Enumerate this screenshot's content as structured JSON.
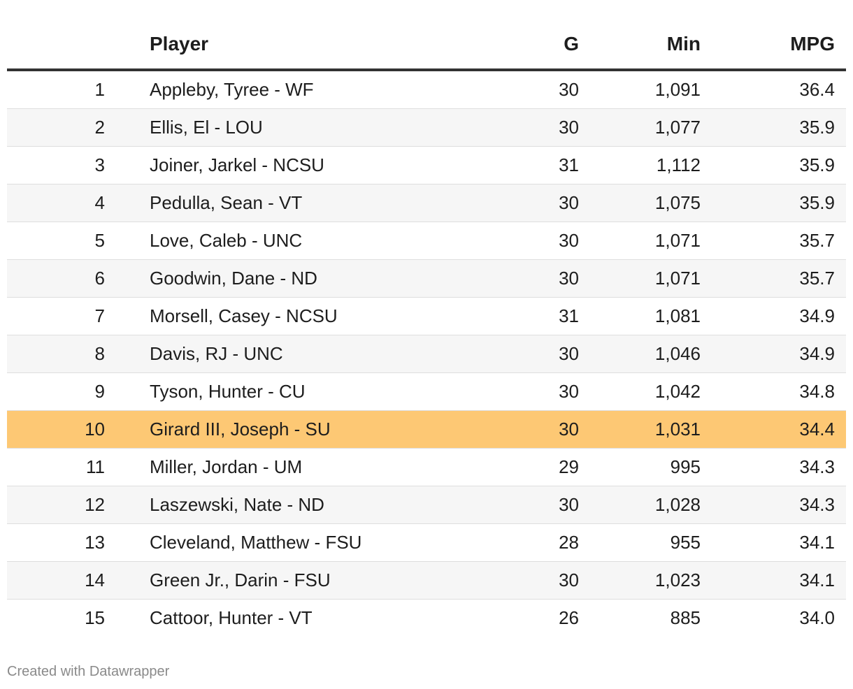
{
  "chart_data": {
    "type": "table",
    "columns": [
      "",
      "Player",
      "G",
      "Min",
      "MPG"
    ],
    "rows": [
      {
        "rank": "1",
        "player": "Appleby, Tyree - WF",
        "g": "30",
        "min": "1,091",
        "mpg": "36.4"
      },
      {
        "rank": "2",
        "player": "Ellis, El - LOU",
        "g": "30",
        "min": "1,077",
        "mpg": "35.9"
      },
      {
        "rank": "3",
        "player": "Joiner, Jarkel - NCSU",
        "g": "31",
        "min": "1,112",
        "mpg": "35.9"
      },
      {
        "rank": "4",
        "player": "Pedulla, Sean - VT",
        "g": "30",
        "min": "1,075",
        "mpg": "35.9"
      },
      {
        "rank": "5",
        "player": "Love, Caleb - UNC",
        "g": "30",
        "min": "1,071",
        "mpg": "35.7"
      },
      {
        "rank": "6",
        "player": "Goodwin, Dane - ND",
        "g": "30",
        "min": "1,071",
        "mpg": "35.7"
      },
      {
        "rank": "7",
        "player": "Morsell, Casey - NCSU",
        "g": "31",
        "min": "1,081",
        "mpg": "34.9"
      },
      {
        "rank": "8",
        "player": "Davis, RJ - UNC",
        "g": "30",
        "min": "1,046",
        "mpg": "34.9"
      },
      {
        "rank": "9",
        "player": "Tyson, Hunter - CU",
        "g": "30",
        "min": "1,042",
        "mpg": "34.8"
      },
      {
        "rank": "10",
        "player": "Girard III, Joseph - SU",
        "g": "30",
        "min": "1,031",
        "mpg": "34.4",
        "highlight": true
      },
      {
        "rank": "11",
        "player": "Miller, Jordan - UM",
        "g": "29",
        "min": "995",
        "mpg": "34.3"
      },
      {
        "rank": "12",
        "player": "Laszewski, Nate - ND",
        "g": "30",
        "min": "1,028",
        "mpg": "34.3"
      },
      {
        "rank": "13",
        "player": "Cleveland, Matthew - FSU",
        "g": "28",
        "min": "955",
        "mpg": "34.1"
      },
      {
        "rank": "14",
        "player": "Green Jr., Darin - FSU",
        "g": "30",
        "min": "1,023",
        "mpg": "34.1"
      },
      {
        "rank": "15",
        "player": "Cattoor, Hunter - VT",
        "g": "26",
        "min": "885",
        "mpg": "34.0"
      }
    ],
    "highlight_color": "#fdc874",
    "stripe_color": "#f6f6f6"
  },
  "footer": {
    "credit": "Created with Datawrapper"
  }
}
